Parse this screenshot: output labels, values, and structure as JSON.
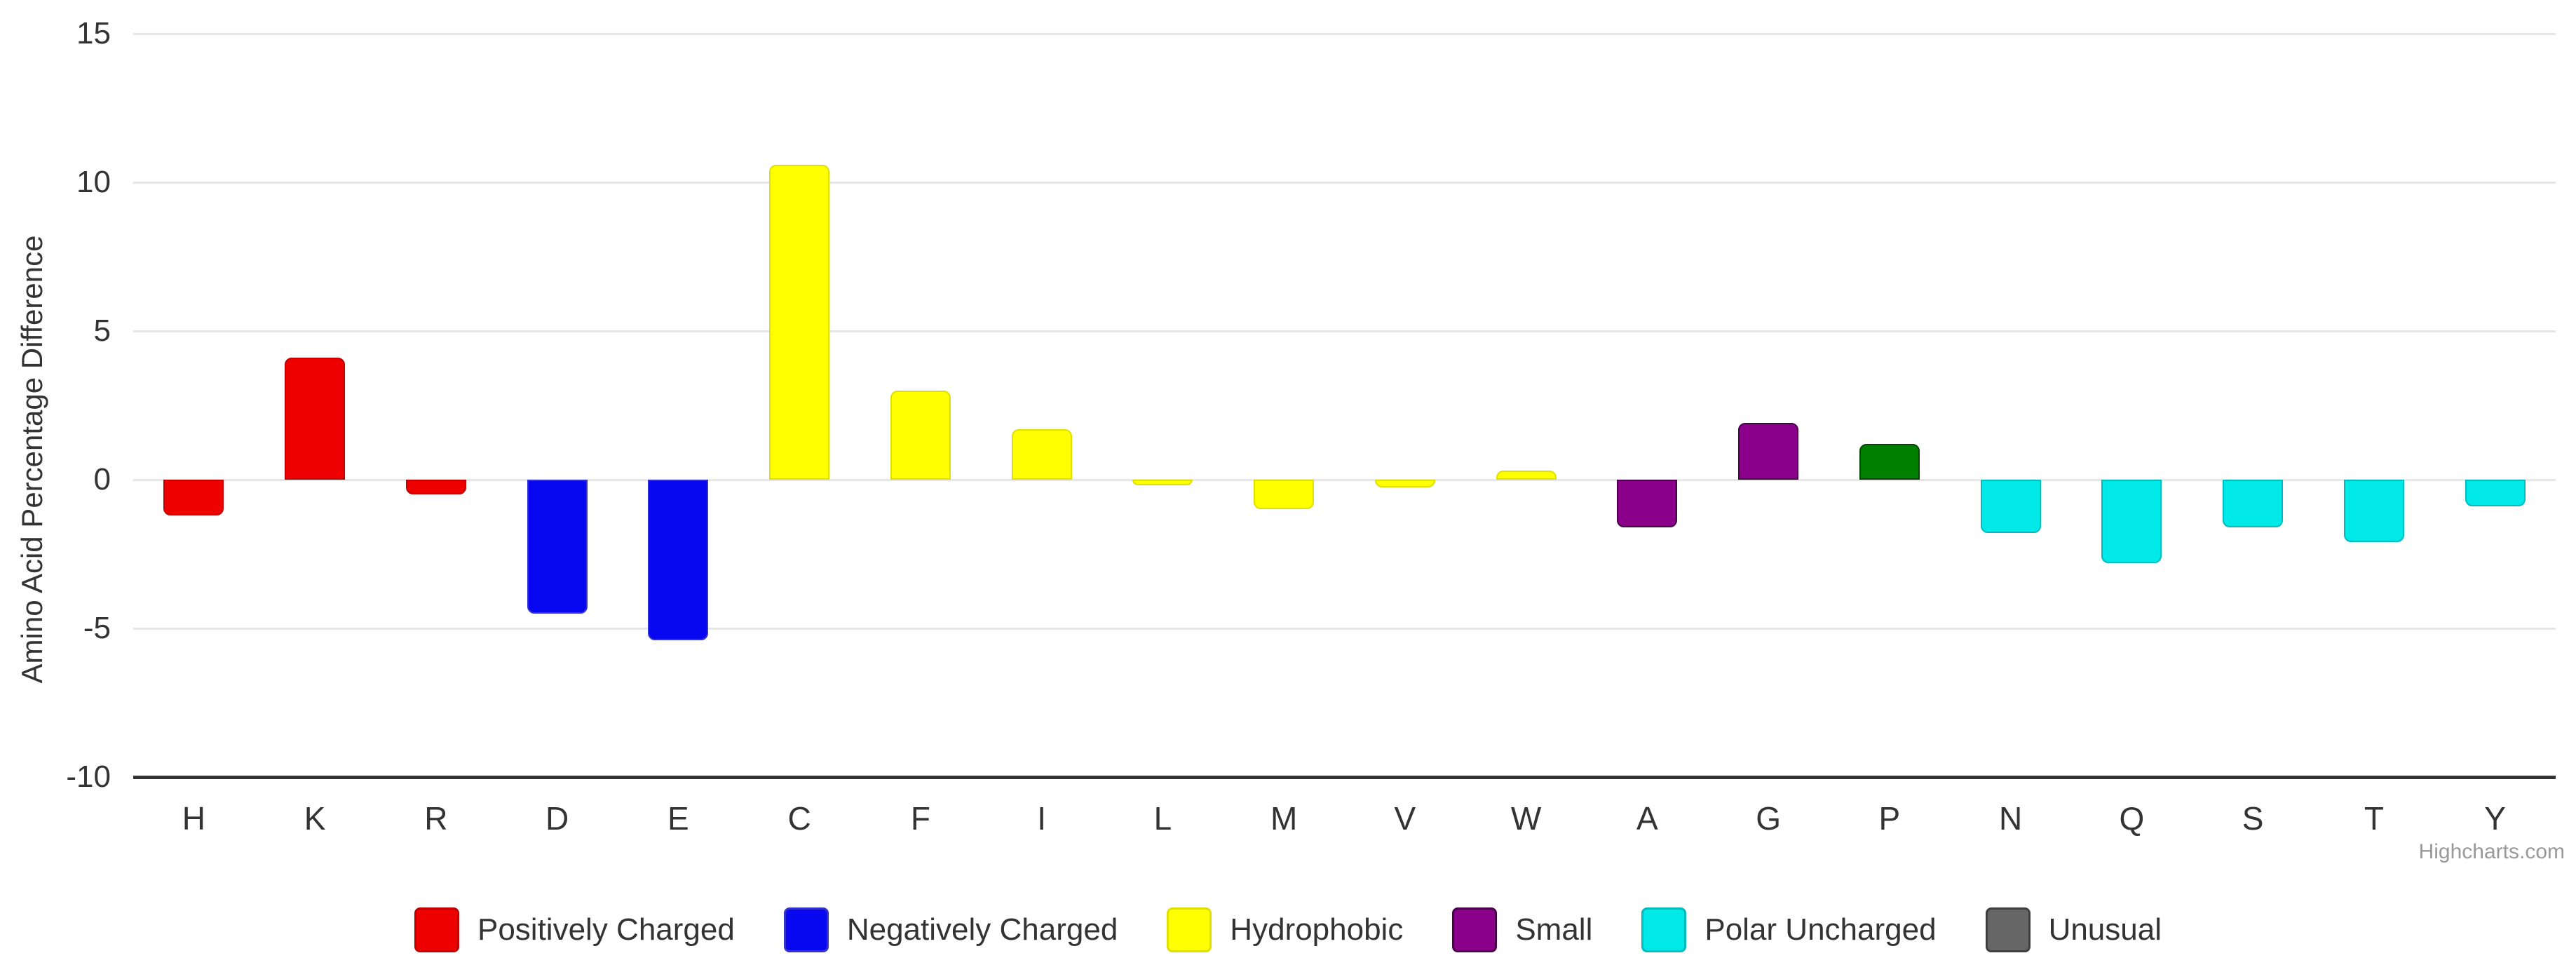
{
  "credits": "Highcharts.com",
  "chart_data": {
    "type": "bar",
    "title": "",
    "xlabel": "",
    "ylabel": "Amino Acid Percentage Difference",
    "ylim": [
      -10,
      15
    ],
    "yticks": [
      15,
      10,
      5,
      0,
      -5,
      -10
    ],
    "grid": true,
    "legend_position": "bottom-center",
    "categories": [
      "H",
      "K",
      "R",
      "D",
      "E",
      "C",
      "F",
      "I",
      "L",
      "M",
      "V",
      "W",
      "A",
      "G",
      "P",
      "N",
      "Q",
      "S",
      "T",
      "Y"
    ],
    "points": [
      {
        "label": "H",
        "value": -1.2,
        "color": "#ee0000",
        "border": "#c00000",
        "legend_group": "Positively Charged"
      },
      {
        "label": "K",
        "value": 4.1,
        "color": "#ee0000",
        "border": "#c00000",
        "legend_group": "Positively Charged"
      },
      {
        "label": "R",
        "value": -0.5,
        "color": "#ee0000",
        "border": "#c00000",
        "legend_group": "Positively Charged"
      },
      {
        "label": "D",
        "value": -4.5,
        "color": "#0808f0",
        "border": "#3333cc",
        "legend_group": "Negatively Charged"
      },
      {
        "label": "E",
        "value": -5.4,
        "color": "#0808f0",
        "border": "#3333cc",
        "legend_group": "Negatively Charged"
      },
      {
        "label": "C",
        "value": 10.6,
        "color": "#ffff00",
        "border": "#e0e000",
        "legend_group": "Hydrophobic"
      },
      {
        "label": "F",
        "value": 3.0,
        "color": "#ffff00",
        "border": "#e0e000",
        "legend_group": "Hydrophobic"
      },
      {
        "label": "I",
        "value": 1.7,
        "color": "#ffff00",
        "border": "#e0e000",
        "legend_group": "Hydrophobic"
      },
      {
        "label": "L",
        "value": -0.2,
        "color": "#ffff00",
        "border": "#e0e000",
        "legend_group": "Hydrophobic"
      },
      {
        "label": "M",
        "value": -1.0,
        "color": "#ffff00",
        "border": "#e0e000",
        "legend_group": "Hydrophobic"
      },
      {
        "label": "V",
        "value": -0.25,
        "color": "#ffff00",
        "border": "#e0e000",
        "legend_group": "Hydrophobic"
      },
      {
        "label": "W",
        "value": 0.3,
        "color": "#ffff00",
        "border": "#e0e000",
        "legend_group": "Hydrophobic"
      },
      {
        "label": "A",
        "value": -1.6,
        "color": "#8b008b",
        "border": "#4b004b",
        "legend_group": "Small"
      },
      {
        "label": "G",
        "value": 1.9,
        "color": "#8b008b",
        "border": "#4b004b",
        "legend_group": "Small"
      },
      {
        "label": "P",
        "value": 1.2,
        "color": "#008000",
        "border": "#004500",
        "legend_group": null
      },
      {
        "label": "N",
        "value": -1.8,
        "color": "#00e9e9",
        "border": "#00bcbc",
        "legend_group": "Polar Uncharged"
      },
      {
        "label": "Q",
        "value": -2.8,
        "color": "#00e9e9",
        "border": "#00bcbc",
        "legend_group": "Polar Uncharged"
      },
      {
        "label": "S",
        "value": -1.6,
        "color": "#00e9e9",
        "border": "#00bcbc",
        "legend_group": "Polar Uncharged"
      },
      {
        "label": "T",
        "value": -2.1,
        "color": "#00e9e9",
        "border": "#00bcbc",
        "legend_group": "Polar Uncharged"
      },
      {
        "label": "Y",
        "value": -0.9,
        "color": "#00e9e9",
        "border": "#00bcbc",
        "legend_group": "Polar Uncharged"
      }
    ],
    "legend": [
      {
        "label": "Positively Charged",
        "color": "#ee0000",
        "border": "#c00000"
      },
      {
        "label": "Negatively Charged",
        "color": "#0808f0",
        "border": "#3333cc"
      },
      {
        "label": "Hydrophobic",
        "color": "#ffff00",
        "border": "#e0e000"
      },
      {
        "label": "Small",
        "color": "#8b008b",
        "border": "#4b004b"
      },
      {
        "label": "Polar Uncharged",
        "color": "#00e9e9",
        "border": "#00bcbc"
      },
      {
        "label": "Unusual",
        "color": "#666666",
        "border": "#3f3f3f"
      }
    ],
    "axis_colors": {
      "grid": "#e6e6e6",
      "axis_line": "#333333",
      "tick_label": "#333333"
    }
  }
}
